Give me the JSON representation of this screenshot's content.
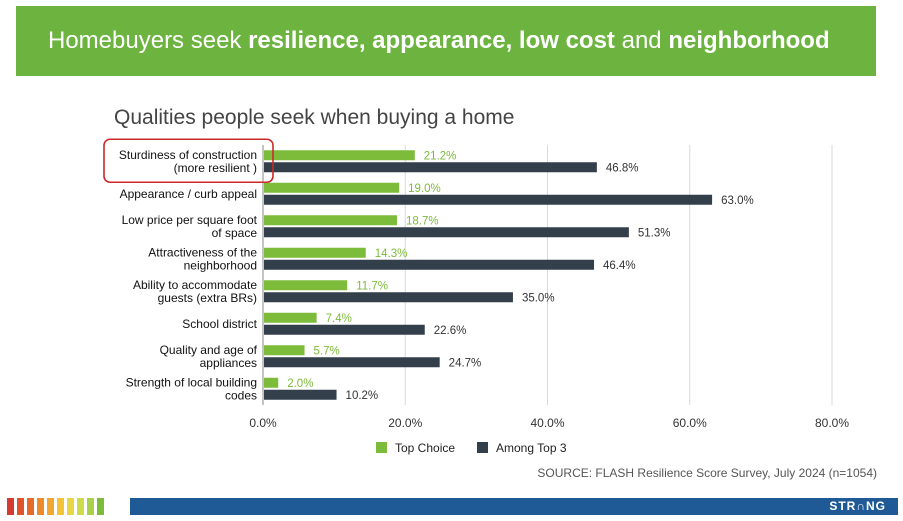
{
  "banner": {
    "parts": [
      {
        "text": "Homebuyers seek ",
        "bold": false
      },
      {
        "text": "resilience, appearance, low cost",
        "bold": true
      },
      {
        "text": " and ",
        "bold": false
      },
      {
        "text": "neighborhood",
        "bold": true
      }
    ]
  },
  "colors": {
    "top_choice": "#7dbb3a",
    "among_top3": "#333f4b",
    "banner": "#6cb33f",
    "highlight_box": "#cc2a2a",
    "footer_bar": "#1f5a96",
    "stripes": [
      "#d63b2f",
      "#e0532b",
      "#e76a2a",
      "#ec8a2c",
      "#f0a830",
      "#f3c437",
      "#e7d646",
      "#cddc4a",
      "#a9d24a",
      "#7dbb3a"
    ]
  },
  "footer": {
    "source": "SOURCE: FLASH Resilience Score Survey, July 2024 (n=1054)",
    "logo": "STR∩NG"
  },
  "chart_data": {
    "type": "bar",
    "orientation": "horizontal",
    "title": "Qualities people seek when buying a home",
    "categories": [
      [
        "Sturdiness of construction",
        "(more resilient )"
      ],
      [
        "Appearance / curb appeal"
      ],
      [
        "Low price per square foot",
        "of space"
      ],
      [
        "Attractiveness of the",
        "neighborhood"
      ],
      [
        "Ability to accommodate",
        "guests (extra BRs)"
      ],
      [
        "School district"
      ],
      [
        "Quality and age of",
        "appliances"
      ],
      [
        "Strength of local building",
        "codes"
      ]
    ],
    "series": [
      {
        "name": "Top Choice",
        "values": [
          21.2,
          19.0,
          18.7,
          14.3,
          11.7,
          7.4,
          5.7,
          2.0
        ],
        "labels": [
          "21.2%",
          "19.0%",
          "18.7%",
          "14.3%",
          "11.7%",
          "7.4%",
          "5.7%",
          "2.0%"
        ]
      },
      {
        "name": "Among Top 3",
        "values": [
          46.8,
          63.0,
          51.3,
          46.4,
          35.0,
          22.6,
          24.7,
          10.2
        ],
        "labels": [
          "46.8%",
          "63.0%",
          "51.3%",
          "46.4%",
          "35.0%",
          "22.6%",
          "24.7%",
          "10.2%"
        ]
      }
    ],
    "xlim": [
      0,
      80
    ],
    "xticks": [
      "0.0%",
      "20.0%",
      "40.0%",
      "60.0%",
      "80.0%"
    ],
    "grid": true,
    "legend": "bottom",
    "highlighted_category": 0
  }
}
